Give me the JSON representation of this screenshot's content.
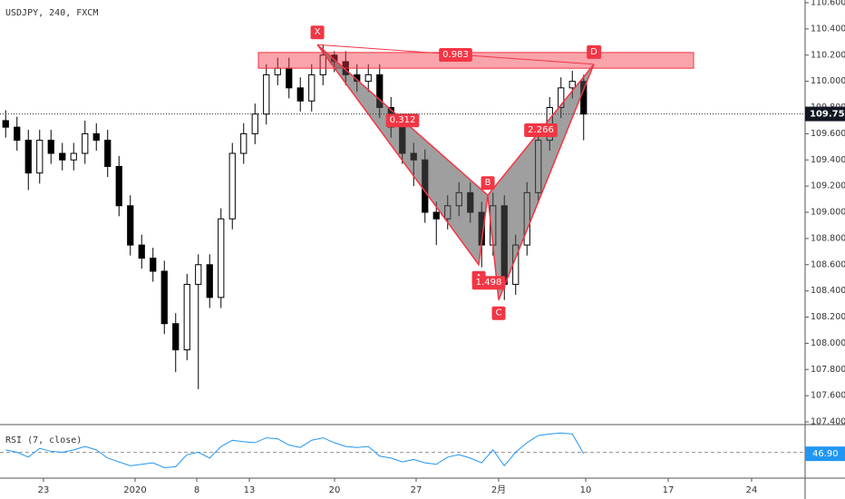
{
  "chart_data": {
    "type": "candlestick",
    "title": "USDJPY, 240, FXCM",
    "x": [
      0,
      1,
      2,
      3,
      4,
      5,
      6,
      7,
      8,
      9,
      10,
      11,
      12,
      13,
      14,
      15,
      16,
      17,
      18,
      19,
      20,
      21,
      22,
      23,
      24,
      25,
      26,
      27,
      28,
      29,
      30,
      31,
      32,
      33,
      34,
      35,
      36,
      37,
      38,
      39,
      40,
      41,
      42,
      43,
      44,
      45,
      46,
      47,
      48,
      49,
      50,
      51
    ],
    "open": [
      109.7,
      109.65,
      109.55,
      109.3,
      109.55,
      109.45,
      109.4,
      109.45,
      109.6,
      109.55,
      109.35,
      109.05,
      108.75,
      108.65,
      108.55,
      108.15,
      107.95,
      108.45,
      108.6,
      108.35,
      108.95,
      109.45,
      109.6,
      109.75,
      110.05,
      110.1,
      109.95,
      109.85,
      110.05,
      110.2,
      110.15,
      110.05,
      110.0,
      110.05,
      109.8,
      109.65,
      109.45,
      109.4,
      109.0,
      108.95,
      109.05,
      109.15,
      109.0,
      108.75,
      109.05,
      108.45,
      108.75,
      109.15,
      109.55,
      109.8,
      109.95,
      110.0
    ],
    "high": [
      109.78,
      109.73,
      109.63,
      109.63,
      109.63,
      109.53,
      109.53,
      109.7,
      109.68,
      109.63,
      109.43,
      109.13,
      108.83,
      108.73,
      108.63,
      108.23,
      108.53,
      108.68,
      108.68,
      109.03,
      109.53,
      109.68,
      109.83,
      110.13,
      110.18,
      110.18,
      110.03,
      110.13,
      110.28,
      110.23,
      110.23,
      110.13,
      110.13,
      110.13,
      109.88,
      109.73,
      109.53,
      109.48,
      109.08,
      109.13,
      109.23,
      109.23,
      109.08,
      109.15,
      109.13,
      108.83,
      109.23,
      109.63,
      109.88,
      110.03,
      110.08,
      110.05
    ],
    "low": [
      109.57,
      109.47,
      109.17,
      109.22,
      109.37,
      109.32,
      109.32,
      109.37,
      109.47,
      109.27,
      108.97,
      108.67,
      108.57,
      108.47,
      108.07,
      107.78,
      107.87,
      107.65,
      108.27,
      108.27,
      108.87,
      109.37,
      109.52,
      109.67,
      109.97,
      109.87,
      109.77,
      109.77,
      109.97,
      110.07,
      109.97,
      109.92,
      109.92,
      109.72,
      109.57,
      109.37,
      109.2,
      108.92,
      108.75,
      108.87,
      108.97,
      108.92,
      108.58,
      108.67,
      108.33,
      108.37,
      108.67,
      109.07,
      109.47,
      109.72,
      109.87,
      109.55
    ],
    "close": [
      109.65,
      109.55,
      109.3,
      109.55,
      109.45,
      109.4,
      109.45,
      109.6,
      109.55,
      109.35,
      109.05,
      108.75,
      108.65,
      108.55,
      108.15,
      107.95,
      108.45,
      108.6,
      108.35,
      108.95,
      109.45,
      109.6,
      109.75,
      110.05,
      110.1,
      109.95,
      109.85,
      110.05,
      110.2,
      110.15,
      110.05,
      110.0,
      110.05,
      109.8,
      109.65,
      109.45,
      109.4,
      109.0,
      108.95,
      109.05,
      109.15,
      109.0,
      108.75,
      109.05,
      108.45,
      108.75,
      109.15,
      109.55,
      109.8,
      109.95,
      110.0,
      109.75
    ],
    "current_price": 109.751,
    "xlim": [
      -0.5,
      70.54
    ],
    "xticks": [
      {
        "value": 3.34,
        "label": "23"
      },
      {
        "value": 11.42,
        "label": "2020"
      },
      {
        "value": 16.86,
        "label": "8"
      },
      {
        "value": 21.5,
        "label": "13"
      },
      {
        "value": 29.02,
        "label": "20"
      },
      {
        "value": 36.22,
        "label": "27"
      },
      {
        "value": 43.5,
        "label": "2月"
      },
      {
        "value": 51.18,
        "label": "10"
      },
      {
        "value": 58.46,
        "label": "17"
      },
      {
        "value": 65.82,
        "label": "24"
      }
    ],
    "ylim": [
      107.4,
      110.6
    ],
    "yticks": [
      {
        "value": 107.4,
        "label": "107.400"
      },
      {
        "value": 107.6,
        "label": "107.600"
      },
      {
        "value": 107.8,
        "label": "107.800"
      },
      {
        "value": 108.0,
        "label": "108.000"
      },
      {
        "value": 108.2,
        "label": "108.200"
      },
      {
        "value": 108.4,
        "label": "108.400"
      },
      {
        "value": 108.6,
        "label": "108.600"
      },
      {
        "value": 108.8,
        "label": "108.800"
      },
      {
        "value": 109.0,
        "label": "109.000"
      },
      {
        "value": 109.2,
        "label": "109.200"
      },
      {
        "value": 109.4,
        "label": "109.400"
      },
      {
        "value": 109.6,
        "label": "109.600"
      },
      {
        "value": 109.8,
        "label": "109.800"
      },
      {
        "value": 110.0,
        "label": "110.000"
      },
      {
        "value": 110.2,
        "label": "110.200"
      },
      {
        "value": 110.4,
        "label": "110.400"
      },
      {
        "value": 110.6,
        "label": "110.600"
      }
    ],
    "pattern": {
      "color": "#f23645",
      "points": [
        {
          "label": "X",
          "x": 27.5,
          "y": 110.28
        },
        {
          "label": "A",
          "x": 41.74,
          "y": 108.6
        },
        {
          "label": "B",
          "x": 42.54,
          "y": 109.13
        },
        {
          "label": "C",
          "x": 43.5,
          "y": 108.33
        },
        {
          "label": "D",
          "x": 51.9,
          "y": 110.13
        }
      ],
      "ratios": [
        0.312,
        1.498,
        2.266,
        0.983
      ],
      "zone": {
        "x": [
          22.3,
          60.7
        ],
        "y": [
          110.1,
          110.22
        ]
      }
    },
    "rsi": {
      "label": "RSI (7, close)",
      "color": "#2196f3",
      "ylim": [
        0,
        100
      ],
      "level": 50,
      "values": [
        55,
        50,
        40,
        58,
        52,
        50,
        55,
        62,
        55,
        38,
        30,
        22,
        25,
        28,
        18,
        20,
        45,
        50,
        38,
        62,
        75,
        72,
        70,
        80,
        78,
        65,
        60,
        75,
        80,
        70,
        62,
        60,
        62,
        42,
        38,
        30,
        35,
        28,
        25,
        40,
        45,
        38,
        28,
        55,
        22,
        50,
        70,
        85,
        88,
        90,
        88,
        46.9
      ],
      "current_value": 46.9,
      "current_value_label": "46.90"
    }
  }
}
